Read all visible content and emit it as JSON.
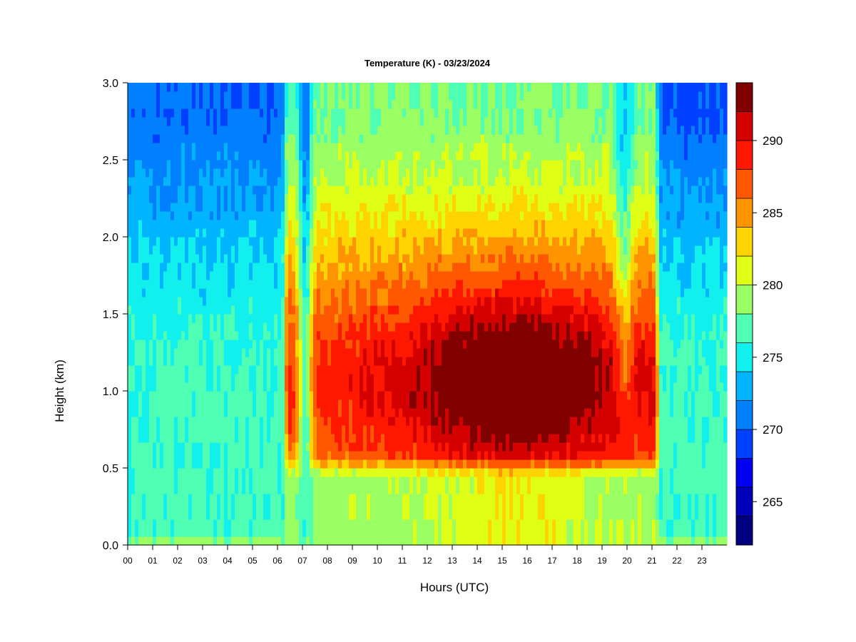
{
  "chart_data": {
    "type": "heatmap",
    "title": "Temperature (K) - 03/23/2024",
    "xlabel": "Hours (UTC)",
    "ylabel": "Height (km)",
    "x_tick_labels": [
      "00",
      "01",
      "02",
      "03",
      "04",
      "05",
      "06",
      "07",
      "08",
      "09",
      "10",
      "11",
      "12",
      "13",
      "14",
      "15",
      "16",
      "17",
      "18",
      "19",
      "20",
      "21",
      "22",
      "23"
    ],
    "x_range_hours": [
      0,
      24
    ],
    "y_ticks": [
      "0.0",
      "0.5",
      "1.0",
      "1.5",
      "2.0",
      "2.5",
      "3.0"
    ],
    "y_range_km": [
      0,
      3.0
    ],
    "colorbar": {
      "levels": [
        262,
        264,
        266,
        268,
        270,
        272,
        274,
        276,
        278,
        280,
        282,
        284,
        286,
        288,
        290,
        292,
        294
      ],
      "colors": [
        "#00007f",
        "#0000b8",
        "#0000f0",
        "#0040ff",
        "#0080ff",
        "#00b4ff",
        "#12f0ee",
        "#4effb4",
        "#9aff62",
        "#e0ff16",
        "#ffd400",
        "#ff9400",
        "#ff5800",
        "#ff1800",
        "#d40000",
        "#800000"
      ],
      "tick_labels": [
        "265",
        "270",
        "275",
        "280",
        "285",
        "290"
      ],
      "tick_values": [
        265,
        270,
        275,
        280,
        285,
        290
      ]
    }
  }
}
